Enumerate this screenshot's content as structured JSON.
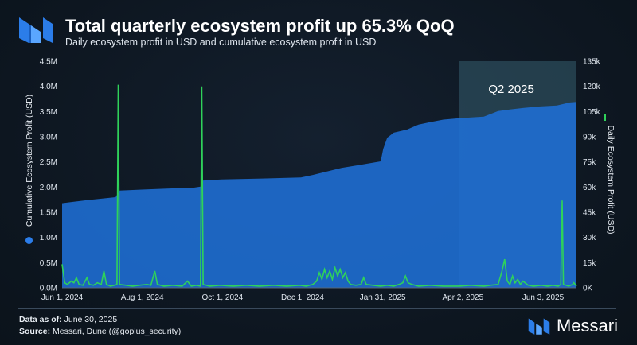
{
  "header": {
    "title": "Total quarterly ecosystem profit up 65.3% QoQ",
    "subtitle": "Daily ecosystem profit in USD and cumulative ecosystem profit in USD",
    "logo": "messari-m-logo"
  },
  "footer": {
    "date_label": "Data as of:",
    "date_value": "June 30, 2025",
    "source_label": "Source:",
    "source_value": "Messari, Dune (@goplus_security)",
    "brand": "Messari"
  },
  "colors": {
    "cumulative_fill": "#1f6fd6",
    "daily_line": "#2fd25a",
    "highlight": "#3f6d7e",
    "background": "#0f1822"
  },
  "chart_data": {
    "type": "area",
    "x_axis": {
      "start": "2024-06-01",
      "end": "2025-06-30",
      "tick_labels": [
        "Jun 1, 2024",
        "Aug 1, 2024",
        "Oct 1, 2024",
        "Dec 1, 2024",
        "Jan 31, 2025",
        "Apr 2, 2025",
        "Jun 3, 2025"
      ]
    },
    "y_left": {
      "label": "Cumulative Ecosystem Profit (USD)",
      "ylim": [
        0,
        4500000
      ],
      "tick_labels": [
        "0.0M",
        "0.5M",
        "1.0M",
        "1.5M",
        "2.0M",
        "2.5M",
        "3.0M",
        "3.5M",
        "4.0M",
        "4.5M"
      ]
    },
    "y_right": {
      "label": "Daily Ecosystem Profit (USD)",
      "ylim": [
        0,
        135000
      ],
      "tick_labels": [
        "0K",
        "15k",
        "30k",
        "45k",
        "60k",
        "75k",
        "90k",
        "105k",
        "120k",
        "135k"
      ]
    },
    "highlight": {
      "label": "Q2 2025",
      "start": "2025-04-01",
      "end": "2025-06-30"
    },
    "series": [
      {
        "name": "Cumulative Ecosystem Profit (USD)",
        "type": "area",
        "points": [
          [
            "2024-06-01",
            1680000
          ],
          [
            "2024-06-10",
            1710000
          ],
          [
            "2024-06-20",
            1740000
          ],
          [
            "2024-07-01",
            1770000
          ],
          [
            "2024-07-12",
            1800000
          ],
          [
            "2024-07-15",
            1930000
          ],
          [
            "2024-08-01",
            1950000
          ],
          [
            "2024-08-20",
            1970000
          ],
          [
            "2024-09-10",
            1990000
          ],
          [
            "2024-09-15",
            2010000
          ],
          [
            "2024-09-17",
            2130000
          ],
          [
            "2024-10-01",
            2150000
          ],
          [
            "2024-11-01",
            2170000
          ],
          [
            "2024-12-01",
            2190000
          ],
          [
            "2024-12-10",
            2240000
          ],
          [
            "2025-01-01",
            2380000
          ],
          [
            "2025-01-15",
            2440000
          ],
          [
            "2025-01-31",
            2510000
          ],
          [
            "2025-02-02",
            2760000
          ],
          [
            "2025-02-05",
            2980000
          ],
          [
            "2025-02-10",
            3080000
          ],
          [
            "2025-02-20",
            3140000
          ],
          [
            "2025-03-01",
            3240000
          ],
          [
            "2025-03-10",
            3290000
          ],
          [
            "2025-03-20",
            3340000
          ],
          [
            "2025-04-02",
            3370000
          ],
          [
            "2025-04-20",
            3400000
          ],
          [
            "2025-05-01",
            3510000
          ],
          [
            "2025-05-10",
            3540000
          ],
          [
            "2025-05-20",
            3570000
          ],
          [
            "2025-06-01",
            3600000
          ],
          [
            "2025-06-15",
            3620000
          ],
          [
            "2025-06-25",
            3680000
          ],
          [
            "2025-06-30",
            3690000
          ]
        ]
      },
      {
        "name": "Daily Ecosystem Profit (USD)",
        "type": "line",
        "points": [
          [
            "2024-06-01",
            14000
          ],
          [
            "2024-06-03",
            3000
          ],
          [
            "2024-06-05",
            2000
          ],
          [
            "2024-06-08",
            4000
          ],
          [
            "2024-06-10",
            3000
          ],
          [
            "2024-06-12",
            6000
          ],
          [
            "2024-06-14",
            2000
          ],
          [
            "2024-06-17",
            1500
          ],
          [
            "2024-06-20",
            6000
          ],
          [
            "2024-06-22",
            2000
          ],
          [
            "2024-06-25",
            1500
          ],
          [
            "2024-06-28",
            3000
          ],
          [
            "2024-07-01",
            2000
          ],
          [
            "2024-07-03",
            10000
          ],
          [
            "2024-07-05",
            2000
          ],
          [
            "2024-07-08",
            1000
          ],
          [
            "2024-07-11",
            1500
          ],
          [
            "2024-07-13",
            2000
          ],
          [
            "2024-07-14",
            121000
          ],
          [
            "2024-07-15",
            2000
          ],
          [
            "2024-07-20",
            1500
          ],
          [
            "2024-07-25",
            1000
          ],
          [
            "2024-07-30",
            1500
          ],
          [
            "2024-08-05",
            2000
          ],
          [
            "2024-08-08",
            1500
          ],
          [
            "2024-08-11",
            10000
          ],
          [
            "2024-08-13",
            2000
          ],
          [
            "2024-08-18",
            1000
          ],
          [
            "2024-08-25",
            1500
          ],
          [
            "2024-09-01",
            1000
          ],
          [
            "2024-09-05",
            4000
          ],
          [
            "2024-09-08",
            1000
          ],
          [
            "2024-09-12",
            1500
          ],
          [
            "2024-09-15",
            1000
          ],
          [
            "2024-09-16",
            120000
          ],
          [
            "2024-09-17",
            2000
          ],
          [
            "2024-09-22",
            1000
          ],
          [
            "2024-09-30",
            1500
          ],
          [
            "2024-10-10",
            1000
          ],
          [
            "2024-10-20",
            1500
          ],
          [
            "2024-10-30",
            1000
          ],
          [
            "2024-11-10",
            1500
          ],
          [
            "2024-11-20",
            1000
          ],
          [
            "2024-11-30",
            1500
          ],
          [
            "2024-12-05",
            1000
          ],
          [
            "2024-12-10",
            2000
          ],
          [
            "2024-12-13",
            4000
          ],
          [
            "2024-12-15",
            9000
          ],
          [
            "2024-12-17",
            5000
          ],
          [
            "2024-12-19",
            11000
          ],
          [
            "2024-12-21",
            6000
          ],
          [
            "2024-12-23",
            10000
          ],
          [
            "2024-12-25",
            5000
          ],
          [
            "2024-12-27",
            12000
          ],
          [
            "2024-12-29",
            7000
          ],
          [
            "2024-12-31",
            11000
          ],
          [
            "2025-01-02",
            6000
          ],
          [
            "2025-01-04",
            9000
          ],
          [
            "2025-01-06",
            4000
          ],
          [
            "2025-01-08",
            2000
          ],
          [
            "2025-01-12",
            1500
          ],
          [
            "2025-01-16",
            2000
          ],
          [
            "2025-01-18",
            6000
          ],
          [
            "2025-01-20",
            2000
          ],
          [
            "2025-01-25",
            1500
          ],
          [
            "2025-01-31",
            1000
          ],
          [
            "2025-02-05",
            1500
          ],
          [
            "2025-02-10",
            1000
          ],
          [
            "2025-02-14",
            2000
          ],
          [
            "2025-02-17",
            3000
          ],
          [
            "2025-02-19",
            7000
          ],
          [
            "2025-02-21",
            3000
          ],
          [
            "2025-02-24",
            2000
          ],
          [
            "2025-03-01",
            1000
          ],
          [
            "2025-03-10",
            1500
          ],
          [
            "2025-03-20",
            1000
          ],
          [
            "2025-04-01",
            1000
          ],
          [
            "2025-04-10",
            1500
          ],
          [
            "2025-04-20",
            1000
          ],
          [
            "2025-04-25",
            1500
          ],
          [
            "2025-05-01",
            2000
          ],
          [
            "2025-05-04",
            10000
          ],
          [
            "2025-05-06",
            17000
          ],
          [
            "2025-05-08",
            4000
          ],
          [
            "2025-05-10",
            2000
          ],
          [
            "2025-05-12",
            7000
          ],
          [
            "2025-05-14",
            3000
          ],
          [
            "2025-05-16",
            5000
          ],
          [
            "2025-05-18",
            2000
          ],
          [
            "2025-05-20",
            4000
          ],
          [
            "2025-05-24",
            1500
          ],
          [
            "2025-05-28",
            1000
          ],
          [
            "2025-06-03",
            1500
          ],
          [
            "2025-06-08",
            1000
          ],
          [
            "2025-06-12",
            1500
          ],
          [
            "2025-06-16",
            1000
          ],
          [
            "2025-06-18",
            2000
          ],
          [
            "2025-06-19",
            52000
          ],
          [
            "2025-06-20",
            2000
          ],
          [
            "2025-06-24",
            1000
          ],
          [
            "2025-06-27",
            2000
          ],
          [
            "2025-06-28",
            3000
          ],
          [
            "2025-06-30",
            1000
          ]
        ]
      }
    ]
  }
}
